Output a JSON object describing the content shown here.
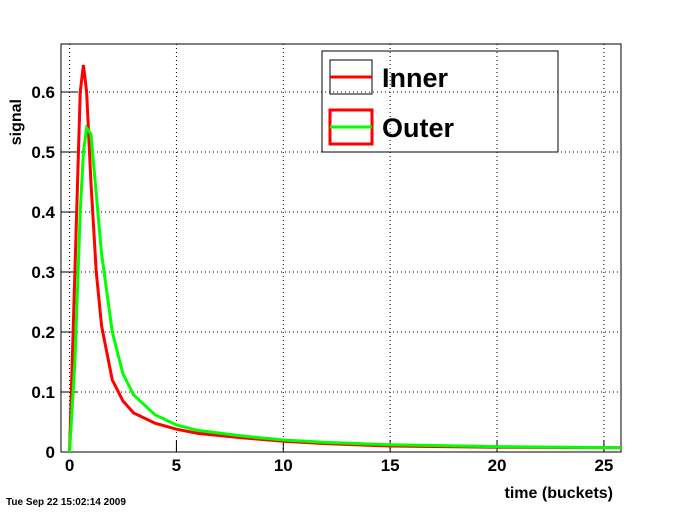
{
  "chart_data": {
    "type": "line",
    "x_label": "time (buckets)",
    "y_label": "signal",
    "annotation": "Tue Sep 22 15:02:14 2009",
    "x": [
      0,
      0.25,
      0.5,
      0.65,
      0.8,
      1,
      1.25,
      1.5,
      2,
      2.5,
      3,
      4,
      5,
      6,
      8,
      10,
      12,
      15,
      20,
      25.8
    ],
    "series": [
      {
        "name": "Inner",
        "color": "#ff0000",
        "values": [
          0,
          0.3,
          0.6,
          0.645,
          0.6,
          0.45,
          0.3,
          0.21,
          0.12,
          0.085,
          0.065,
          0.048,
          0.038,
          0.031,
          0.024,
          0.018,
          0.014,
          0.01,
          0.008,
          0.007
        ]
      },
      {
        "name": "Outer",
        "color": "#00ff00",
        "values": [
          0,
          0.15,
          0.4,
          0.5,
          0.54,
          0.53,
          0.43,
          0.33,
          0.2,
          0.13,
          0.095,
          0.062,
          0.045,
          0.036,
          0.027,
          0.02,
          0.016,
          0.012,
          0.009,
          0.007
        ]
      }
    ],
    "xlim": [
      -0.4,
      25.8
    ],
    "xticks": [
      0,
      5,
      10,
      15,
      20,
      25
    ],
    "ylim": [
      0,
      0.68
    ],
    "yticks": [
      0,
      0.1,
      0.2,
      0.3,
      0.4,
      0.5,
      0.6
    ],
    "grid": true,
    "legend": "top-right"
  }
}
